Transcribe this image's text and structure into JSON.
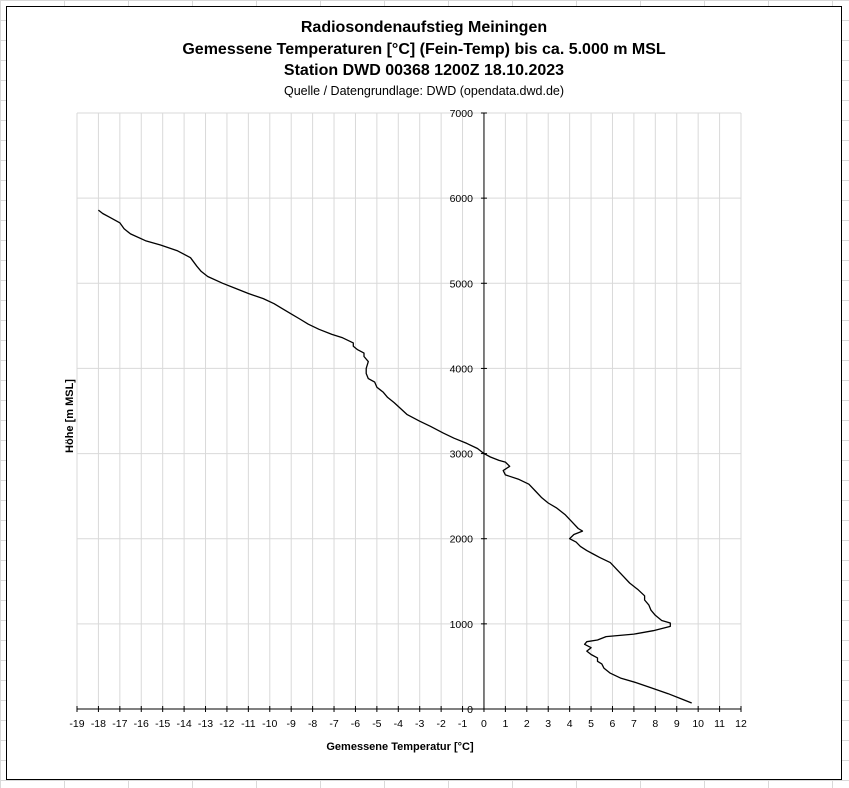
{
  "chart_data": {
    "type": "line",
    "title_lines": [
      "Radiosondenaufstieg Meiningen",
      "Gemessene Temperaturen [°C] (Fein-Temp) bis ca. 5.000 m MSL",
      "Station DWD 00368 1200Z 18.10.2023"
    ],
    "subtitle": "Quelle / Datengrundlage: DWD (opendata.dwd.de)",
    "xlabel": "Gemessene Temperatur [°C]",
    "ylabel": "Höhe [m MSL]",
    "xlim": [
      -19,
      12
    ],
    "ylim": [
      0,
      7000
    ],
    "x_ticks": [
      -19,
      -18,
      -17,
      -16,
      -15,
      -14,
      -13,
      -12,
      -11,
      -10,
      -9,
      -8,
      -7,
      -6,
      -5,
      -4,
      -3,
      -2,
      -1,
      0,
      1,
      2,
      3,
      4,
      5,
      6,
      7,
      8,
      9,
      10,
      11,
      12
    ],
    "y_ticks": [
      0,
      1000,
      2000,
      3000,
      4000,
      5000,
      6000,
      7000
    ],
    "grid": true,
    "legend": "none",
    "line_color": "#000000",
    "series": [
      {
        "points": [
          [
            9.7,
            70
          ],
          [
            9.3,
            110
          ],
          [
            8.6,
            180
          ],
          [
            7.8,
            250
          ],
          [
            7.1,
            310
          ],
          [
            6.4,
            360
          ],
          [
            5.9,
            420
          ],
          [
            5.6,
            480
          ],
          [
            5.5,
            530
          ],
          [
            5.3,
            560
          ],
          [
            5.3,
            600
          ],
          [
            5.0,
            640
          ],
          [
            4.8,
            680
          ],
          [
            5.0,
            720
          ],
          [
            4.7,
            760
          ],
          [
            4.8,
            790
          ],
          [
            5.3,
            810
          ],
          [
            5.7,
            850
          ],
          [
            7.0,
            880
          ],
          [
            7.9,
            920
          ],
          [
            8.7,
            970
          ],
          [
            8.7,
            1010
          ],
          [
            8.3,
            1040
          ],
          [
            8.0,
            1100
          ],
          [
            7.8,
            1160
          ],
          [
            7.7,
            1220
          ],
          [
            7.5,
            1280
          ],
          [
            7.5,
            1330
          ],
          [
            7.2,
            1400
          ],
          [
            6.8,
            1480
          ],
          [
            6.5,
            1560
          ],
          [
            6.2,
            1640
          ],
          [
            5.9,
            1720
          ],
          [
            5.4,
            1780
          ],
          [
            5.1,
            1820
          ],
          [
            4.8,
            1860
          ],
          [
            4.5,
            1910
          ],
          [
            4.3,
            1960
          ],
          [
            4.0,
            2000
          ],
          [
            4.2,
            2050
          ],
          [
            4.6,
            2090
          ],
          [
            4.4,
            2120
          ],
          [
            4.1,
            2200
          ],
          [
            3.8,
            2280
          ],
          [
            3.4,
            2360
          ],
          [
            3.0,
            2420
          ],
          [
            2.7,
            2480
          ],
          [
            2.4,
            2560
          ],
          [
            2.1,
            2640
          ],
          [
            1.6,
            2700
          ],
          [
            1.0,
            2750
          ],
          [
            0.9,
            2800
          ],
          [
            1.2,
            2850
          ],
          [
            1.0,
            2900
          ],
          [
            0.7,
            2920
          ],
          [
            0.3,
            2960
          ],
          [
            0.0,
            3000
          ],
          [
            -0.3,
            3060
          ],
          [
            -0.8,
            3120
          ],
          [
            -1.4,
            3180
          ],
          [
            -1.9,
            3240
          ],
          [
            -2.5,
            3320
          ],
          [
            -3.0,
            3380
          ],
          [
            -3.6,
            3460
          ],
          [
            -3.9,
            3530
          ],
          [
            -4.2,
            3600
          ],
          [
            -4.5,
            3660
          ],
          [
            -4.7,
            3720
          ],
          [
            -5.0,
            3780
          ],
          [
            -5.1,
            3840
          ],
          [
            -5.4,
            3880
          ],
          [
            -5.5,
            3940
          ],
          [
            -5.5,
            4000
          ],
          [
            -5.4,
            4080
          ],
          [
            -5.6,
            4140
          ],
          [
            -5.6,
            4180
          ],
          [
            -5.9,
            4220
          ],
          [
            -6.1,
            4260
          ],
          [
            -6.1,
            4300
          ],
          [
            -6.6,
            4360
          ],
          [
            -7.1,
            4400
          ],
          [
            -7.7,
            4460
          ],
          [
            -8.2,
            4520
          ],
          [
            -8.6,
            4580
          ],
          [
            -9.0,
            4640
          ],
          [
            -9.4,
            4700
          ],
          [
            -9.8,
            4760
          ],
          [
            -10.3,
            4820
          ],
          [
            -11.0,
            4880
          ],
          [
            -11.6,
            4940
          ],
          [
            -12.2,
            5000
          ],
          [
            -12.9,
            5080
          ],
          [
            -13.2,
            5140
          ],
          [
            -13.4,
            5200
          ],
          [
            -13.7,
            5300
          ],
          [
            -14.3,
            5380
          ],
          [
            -15.1,
            5450
          ],
          [
            -15.8,
            5500
          ],
          [
            -16.5,
            5580
          ],
          [
            -16.8,
            5640
          ],
          [
            -17.0,
            5710
          ],
          [
            -17.5,
            5780
          ],
          [
            -17.8,
            5820
          ],
          [
            -18.0,
            5860
          ]
        ]
      }
    ]
  }
}
